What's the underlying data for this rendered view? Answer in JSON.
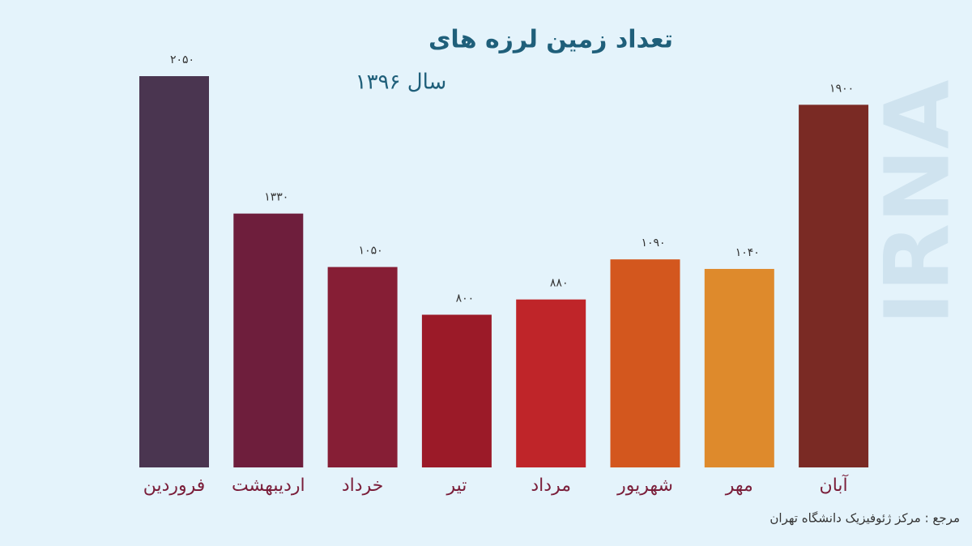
{
  "chart_data": {
    "type": "bar",
    "title": "تعداد زمین لرزه های",
    "subtitle": "سال ۱۳۹۶",
    "categories": [
      "فروردین",
      "اردیبهشت",
      "خرداد",
      "تیر",
      "مرداد",
      "شهریور",
      "مهر",
      "آبان"
    ],
    "values": [
      2050,
      1330,
      1050,
      800,
      880,
      1090,
      1040,
      1900
    ],
    "value_labels": [
      "۲۰۵۰",
      "۱۳۳۰",
      "۱۰۵۰",
      "۸۰۰",
      "۸۸۰",
      "۱۰۹۰",
      "۱۰۴۰",
      "۱۹۰۰"
    ],
    "colors": [
      "#4a3550",
      "#6e1e3c",
      "#861e35",
      "#9b1a28",
      "#bf2529",
      "#d3571e",
      "#de8a2c",
      "#7a2a24"
    ],
    "source": "مرجع : مرکز ژئوفیزیک دانشگاه تهران",
    "watermark": "IRNA"
  }
}
